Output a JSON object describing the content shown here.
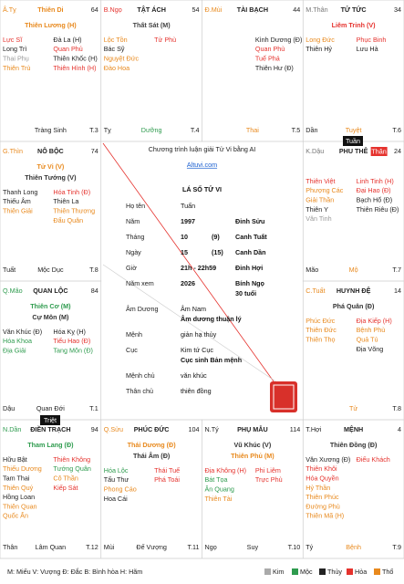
{
  "palaces": [
    {
      "canchi": "Â.Tỵ",
      "canchi_color": "#e8891d",
      "name": "Thiên Di",
      "name_color": "#e8891d",
      "number": "64",
      "main": [
        {
          "text": "Thiên Lương (H)",
          "color": "#e8891d"
        }
      ],
      "left": [
        {
          "text": "Lực Sĩ",
          "color": "#e5322d"
        },
        {
          "text": "Long Trì",
          "color": "#222"
        },
        {
          "text": "Thai Phụ",
          "color": "#999"
        },
        {
          "text": "Thiên Trù",
          "color": "#e8891d"
        }
      ],
      "right": [
        {
          "text": "Đà La (H)",
          "color": "#222"
        },
        {
          "text": "Quan Phủ",
          "color": "#e5322d"
        },
        {
          "text": "Thiên Khốc (H)",
          "color": "#222"
        },
        {
          "text": "Thiên Hình (H)",
          "color": "#e5322d"
        }
      ],
      "branch": "",
      "stage": "Tràng Sinh",
      "stage_color": "#222",
      "tnum": "T.3"
    },
    {
      "canchi": "B.Ngọ",
      "canchi_color": "#e5322d",
      "name": "TẬT ÁCH",
      "name_color": "#222",
      "number": "54",
      "main": [
        {
          "text": "Thất Sát (M)",
          "color": "#444"
        }
      ],
      "left": [
        {
          "text": "Lộc Tồn",
          "color": "#e8891d"
        },
        {
          "text": "Bác Sỹ",
          "color": "#222"
        },
        {
          "text": "Nguyệt Đức",
          "color": "#e8891d"
        },
        {
          "text": "Đào Hoa",
          "color": "#e8891d"
        }
      ],
      "right": [
        {
          "text": "Tử Phù",
          "color": "#e5322d"
        }
      ],
      "branch": "Tỵ",
      "stage": "Dưỡng",
      "stage_color": "#2e9b4e",
      "tnum": "T.4"
    },
    {
      "canchi": "Đ.Mùi",
      "canchi_color": "#e8891d",
      "name": "TÀI BẠCH",
      "name_color": "#222",
      "number": "44",
      "main": [],
      "left": [],
      "right": [
        {
          "text": "Kình Dương (Đ)",
          "color": "#222"
        },
        {
          "text": "Quan Phù",
          "color": "#e5322d"
        },
        {
          "text": "Tuế Phá",
          "color": "#e5322d"
        },
        {
          "text": "Thiên Hư (Đ)",
          "color": "#222"
        }
      ],
      "branch": "",
      "stage": "Thai",
      "stage_color": "#e8891d",
      "tnum": "T.5"
    },
    {
      "canchi": "M.Thân",
      "canchi_color": "#777",
      "name": "TỬ TỨC",
      "name_color": "#222",
      "number": "34",
      "main": [
        {
          "text": "Liêm Trinh (V)",
          "color": "#e5322d"
        }
      ],
      "left": [
        {
          "text": "Long Đức",
          "color": "#e8891d"
        },
        {
          "text": "Thiên Hỷ",
          "color": "#222"
        }
      ],
      "right": [
        {
          "text": "Phục Binh",
          "color": "#e5322d"
        },
        {
          "text": "Lưu Hà",
          "color": "#222"
        }
      ],
      "branch": "Dần",
      "stage": "Tuyệt",
      "stage_color": "#e8891d",
      "tnum": "T.6"
    },
    {
      "canchi": "G.Thìn",
      "canchi_color": "#e8891d",
      "name": "NÔ BỘC",
      "name_color": "#222",
      "number": "74",
      "main": [
        {
          "text": "Tử Vi (V)",
          "color": "#e8891d"
        },
        {
          "text": "Thiên Tướng (V)",
          "color": "#333"
        }
      ],
      "left": [
        {
          "text": "Thanh Long",
          "color": "#222"
        },
        {
          "text": "Thiếu Âm",
          "color": "#222"
        },
        {
          "text": "Thiên Giải",
          "color": "#e8891d"
        }
      ],
      "right": [
        {
          "text": "Hóa Tinh (Đ)",
          "color": "#e5322d"
        },
        {
          "text": "Thiên La",
          "color": "#222"
        },
        {
          "text": "Thiên Thương",
          "color": "#e8891d"
        },
        {
          "text": "Đẩu Quân",
          "color": "#e8891d"
        }
      ],
      "branch": "Tuất",
      "stage": "Mộc Dục",
      "stage_color": "#222",
      "tnum": "T.8"
    },
    {
      "canchi": "K.Dậu",
      "canchi_color": "#777",
      "name": "PHU THÊ",
      "name_color": "#222",
      "badge": "Thân",
      "number": "24",
      "main": [],
      "left": [
        {
          "text": "Thiên Việt",
          "color": "#e5322d"
        },
        {
          "text": "Phượng Các",
          "color": "#e8891d"
        },
        {
          "text": "Giải Thần",
          "color": "#e8891d"
        },
        {
          "text": "Thiên Y",
          "color": "#222"
        },
        {
          "text": "Văn Tinh",
          "color": "#999"
        }
      ],
      "right": [
        {
          "text": "Linh Tinh (H)",
          "color": "#e5322d"
        },
        {
          "text": "Đại Hao (Đ)",
          "color": "#e5322d"
        },
        {
          "text": "Bạch Hổ (Đ)",
          "color": "#222"
        },
        {
          "text": "Thiên Riêu (Đ)",
          "color": "#222"
        }
      ],
      "branch": "Mão",
      "stage": "Mộ",
      "stage_color": "#e8891d",
      "tnum": "T.7"
    },
    {
      "canchi": "Q.Mão",
      "canchi_color": "#2e9b4e",
      "name": "QUAN LỘC",
      "name_color": "#222",
      "number": "84",
      "main": [
        {
          "text": "Thiên Cơ (M)",
          "color": "#2e9b4e"
        },
        {
          "text": "Cự Môn (M)",
          "color": "#333"
        }
      ],
      "left": [
        {
          "text": "Văn Khúc (Đ)",
          "color": "#222"
        },
        {
          "text": "Hóa Khoa",
          "color": "#2e9b4e"
        },
        {
          "text": "Địa Giải",
          "color": "#2e9b4e"
        }
      ],
      "right": [
        {
          "text": "Hóa Kỵ (H)",
          "color": "#222"
        },
        {
          "text": "Tiểu Hao (Đ)",
          "color": "#e5322d"
        },
        {
          "text": "Tang Môn (Đ)",
          "color": "#2e9b4e"
        }
      ],
      "branch": "Dậu",
      "stage": "Quan Đới",
      "stage_color": "#222",
      "tnum": "T.1"
    },
    {
      "canchi": "C.Tuất",
      "canchi_color": "#e8891d",
      "name": "HUYNH ĐỆ",
      "name_color": "#222",
      "number": "14",
      "main": [
        {
          "text": "Phá Quân (Đ)",
          "color": "#333"
        }
      ],
      "left": [
        {
          "text": "Phúc Đức",
          "color": "#e8891d"
        },
        {
          "text": "Thiên Đức",
          "color": "#e8891d"
        },
        {
          "text": "Thiên Thọ",
          "color": "#e8891d"
        }
      ],
      "right": [
        {
          "text": "Địa Kiếp (H)",
          "color": "#e5322d"
        },
        {
          "text": "Bệnh Phù",
          "color": "#e8891d"
        },
        {
          "text": "Quả Tú",
          "color": "#e8891d"
        },
        {
          "text": "Địa Võng",
          "color": "#222"
        }
      ],
      "branch": "",
      "stage": "Tử",
      "stage_color": "#e8891d",
      "tnum": "T.8"
    },
    {
      "canchi": "N.Dần",
      "canchi_color": "#2e9b4e",
      "name": "ĐIỀN TRẠCH",
      "name_color": "#222",
      "number": "94",
      "main": [
        {
          "text": "Tham Lang (Đ)",
          "color": "#2e9b4e"
        }
      ],
      "left": [
        {
          "text": "Hữu Bật",
          "color": "#222"
        },
        {
          "text": "Thiếu Dương",
          "color": "#e8891d"
        },
        {
          "text": "Tam Thai",
          "color": "#222"
        },
        {
          "text": "Thiên Quý",
          "color": "#e8891d"
        },
        {
          "text": "Hồng Loan",
          "color": "#222"
        },
        {
          "text": "Thiên Quan",
          "color": "#e8891d"
        },
        {
          "text": "Quốc Ấn",
          "color": "#e8891d"
        }
      ],
      "right": [
        {
          "text": "Thiên Không",
          "color": "#e5322d"
        },
        {
          "text": "Tướng Quân",
          "color": "#2e9b4e"
        },
        {
          "text": "Cô Thần",
          "color": "#e8891d"
        },
        {
          "text": "Kiếp Sát",
          "color": "#e5322d"
        }
      ],
      "branch": "Thân",
      "stage": "Lâm Quan",
      "stage_color": "#222",
      "tnum": "T.12"
    },
    {
      "canchi": "Q.Sửu",
      "canchi_color": "#e8891d",
      "name": "PHÚC ĐỨC",
      "name_color": "#222",
      "number": "104",
      "main": [
        {
          "text": "Thái Dương (Đ)",
          "color": "#e8891d"
        },
        {
          "text": "Thái Âm (Đ)",
          "color": "#333"
        }
      ],
      "left": [
        {
          "text": "Hóa Lộc",
          "color": "#2e9b4e"
        },
        {
          "text": "Tấu Thư",
          "color": "#222"
        },
        {
          "text": "Phong Cáo",
          "color": "#e8891d"
        },
        {
          "text": "Hoa Cái",
          "color": "#222"
        }
      ],
      "right": [
        {
          "text": "Thái Tuế",
          "color": "#e5322d"
        },
        {
          "text": "Phá Toái",
          "color": "#e5322d"
        }
      ],
      "branch": "Mùi",
      "stage": "Đế Vượng",
      "stage_color": "#222",
      "tnum": "T.11"
    },
    {
      "canchi": "N.Tý",
      "canchi_color": "#222",
      "name": "PHỤ MẪU",
      "name_color": "#222",
      "number": "114",
      "main": [
        {
          "text": "Vũ Khúc (V)",
          "color": "#333"
        },
        {
          "text": "Thiên Phủ (M)",
          "color": "#e8891d"
        }
      ],
      "left": [
        {
          "text": "Địa Không (H)",
          "color": "#e5322d"
        },
        {
          "text": "Bát Tọa",
          "color": "#2e9b4e"
        },
        {
          "text": "Ân Quang",
          "color": "#2e9b4e"
        },
        {
          "text": "Thiên Tài",
          "color": "#e8891d"
        }
      ],
      "right": [
        {
          "text": "Phi Liêm",
          "color": "#e5322d"
        },
        {
          "text": "Trực Phù",
          "color": "#e5322d"
        }
      ],
      "branch": "Ngọ",
      "stage": "Suy",
      "stage_color": "#222",
      "tnum": "T.10"
    },
    {
      "canchi": "T.Hợi",
      "canchi_color": "#222",
      "name": "MỆNH",
      "name_color": "#222",
      "number": "4",
      "main": [
        {
          "text": "Thiên Đồng (Đ)",
          "color": "#333"
        }
      ],
      "left": [
        {
          "text": "Văn Xương (Đ)",
          "color": "#222"
        },
        {
          "text": "Thiên Khôi",
          "color": "#e5322d"
        },
        {
          "text": "Hóa Quyền",
          "color": "#e5322d"
        },
        {
          "text": "Hỷ Thần",
          "color": "#e8891d"
        },
        {
          "text": "Thiên Phúc",
          "color": "#e8891d"
        },
        {
          "text": "Đường Phù",
          "color": "#e8891d"
        },
        {
          "text": "Thiên Mã (H)",
          "color": "#e8891d"
        }
      ],
      "right": [
        {
          "text": "Điếu Khách",
          "color": "#e5322d"
        }
      ],
      "branch": "Tý",
      "stage": "Bệnh",
      "stage_color": "#e8891d",
      "tnum": "T.9"
    }
  ],
  "markers": {
    "tuan": "Tuần",
    "triet": "Triệt"
  },
  "center": {
    "intro": "Chương trình luận giải Tử Vi bằng AI",
    "site": "Altuvi.com",
    "title": "LÁ SỐ TỬ VI",
    "rows": [
      {
        "label": "Họ tên",
        "cols": [
          "Tuấn"
        ]
      },
      {
        "label": "Năm",
        "cols": [
          "1997",
          "Đinh Sửu"
        ]
      },
      {
        "label": "Tháng",
        "cols": [
          "10",
          "(9)",
          "Canh Tuất"
        ]
      },
      {
        "label": "Ngày",
        "cols": [
          "15",
          "(15)",
          "Canh Dần"
        ]
      },
      {
        "label": "Giờ",
        "cols": [
          "21h - 22h59",
          "Đinh Hợi"
        ]
      },
      {
        "label": "Năm xem",
        "cols": [
          "2026",
          "Bính Ngọ"
        ],
        "sub": "30 tuổi"
      },
      {
        "label": "Âm Dương",
        "cols": [
          "Âm Nam"
        ],
        "sub": "Âm dương thuận lý"
      },
      {
        "label": "Mệnh",
        "cols": [
          "giản hạ thủy"
        ]
      },
      {
        "label": "Cục",
        "cols": [
          "Kim tứ Cục"
        ],
        "sub": "Cục sinh Bản mệnh"
      },
      {
        "label": "Mệnh chủ",
        "cols": [
          "văn khúc"
        ]
      },
      {
        "label": "Thân chủ",
        "cols": [
          "thiên đồng"
        ]
      }
    ]
  },
  "legend": {
    "text": "M: Miếu  V: Vượng  Đ: Đắc  B: Bình hòa  H: Hãm",
    "elements": [
      {
        "name": "Kim",
        "color": "#aaa"
      },
      {
        "name": "Mộc",
        "color": "#2e9b4e"
      },
      {
        "name": "Thủy",
        "color": "#222"
      },
      {
        "name": "Hỏa",
        "color": "#e5322d"
      },
      {
        "name": "Thổ",
        "color": "#e8891d"
      }
    ]
  }
}
